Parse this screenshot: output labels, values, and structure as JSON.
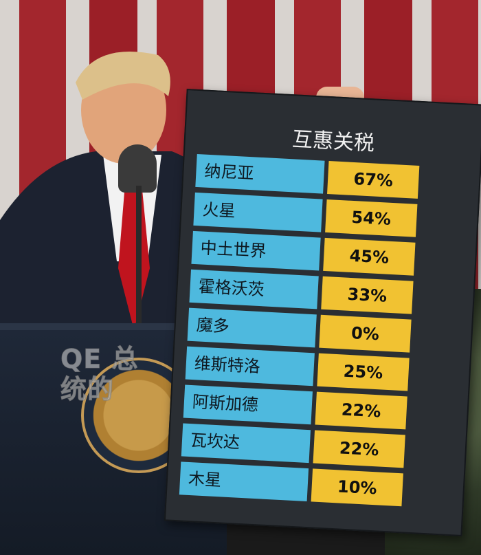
{
  "board": {
    "title": "互惠关税",
    "rows": [
      {
        "country": "纳尼亚",
        "rate": "67%"
      },
      {
        "country": "火星",
        "rate": "54%"
      },
      {
        "country": "中土世界",
        "rate": "45%"
      },
      {
        "country": "霍格沃茨",
        "rate": "33%"
      },
      {
        "country": "魔多",
        "rate": "0%"
      },
      {
        "country": "维斯特洛",
        "rate": "25%"
      },
      {
        "country": "阿斯加德",
        "rate": "22%"
      },
      {
        "country": "瓦坎达",
        "rate": "22%"
      },
      {
        "country": "木星",
        "rate": "10%"
      }
    ]
  },
  "watermark": {
    "line1": "QE 总",
    "line2": "统的"
  },
  "colors": {
    "country_cell": "#4eb9de",
    "rate_cell": "#f1c232",
    "board_bg": "#2a2e33"
  }
}
